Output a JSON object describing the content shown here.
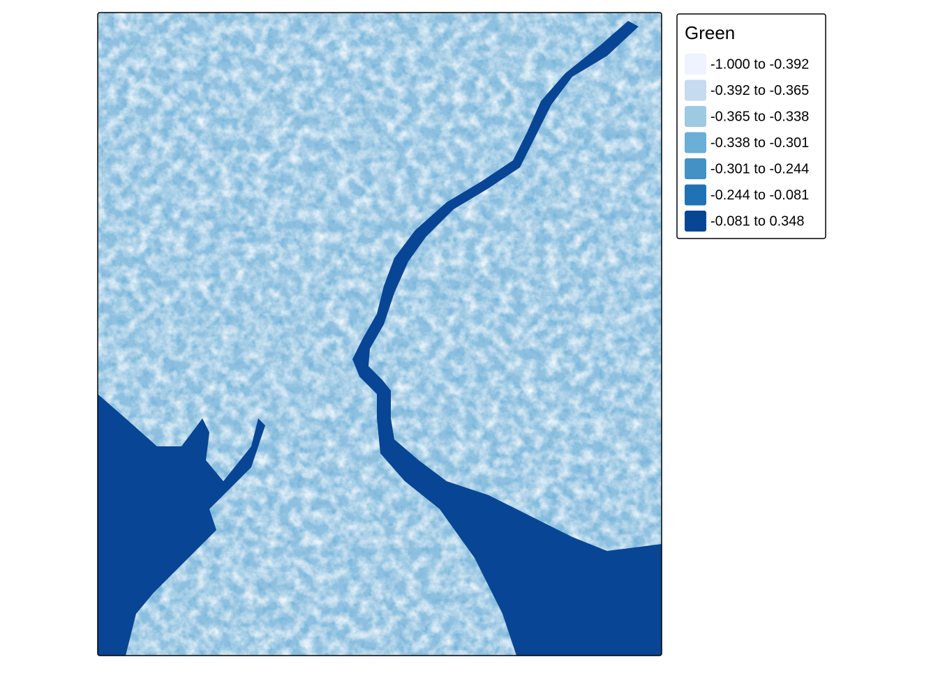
{
  "legend": {
    "title": "Green",
    "items": [
      {
        "label": "-1.000 to -0.392",
        "color": "#eff3ff"
      },
      {
        "label": "-0.392 to -0.365",
        "color": "#c6dbef"
      },
      {
        "label": "-0.365 to -0.338",
        "color": "#9ecae1"
      },
      {
        "label": "-0.338 to -0.301",
        "color": "#6baed6"
      },
      {
        "label": "-0.301 to -0.244",
        "color": "#4292c6"
      },
      {
        "label": "-0.244 to -0.081",
        "color": "#2171b5"
      },
      {
        "label": "-0.081 to 0.348",
        "color": "#084594"
      }
    ]
  }
}
